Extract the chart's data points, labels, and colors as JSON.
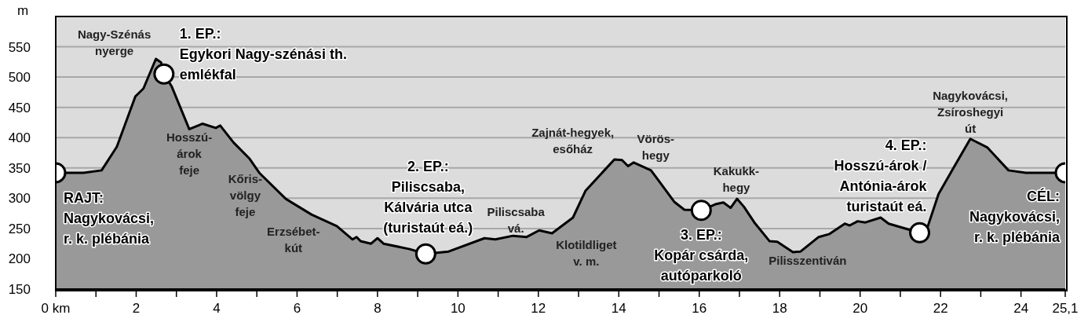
{
  "chart_data": {
    "type": "area",
    "ylabel": "m",
    "ylim": [
      150,
      600
    ],
    "yticks": [
      150,
      200,
      250,
      300,
      350,
      400,
      450,
      500,
      550
    ],
    "xlim": [
      0,
      25.1
    ],
    "xticks": [
      {
        "value": 0,
        "label": "0 km"
      },
      {
        "value": 1,
        "label": null
      },
      2,
      {
        "value": 3,
        "label": null
      },
      4,
      {
        "value": 5,
        "label": null
      },
      6,
      {
        "value": 7,
        "label": null
      },
      8,
      {
        "value": 9,
        "label": null
      },
      10,
      {
        "value": 11,
        "label": null
      },
      12,
      {
        "value": 13,
        "label": null
      },
      14,
      {
        "value": 15,
        "label": null
      },
      16,
      {
        "value": 17,
        "label": null
      },
      18,
      {
        "value": 19,
        "label": null
      },
      20,
      {
        "value": 21,
        "label": null
      },
      22,
      {
        "value": 23,
        "label": null
      },
      24,
      {
        "value": 25.1,
        "label": "25,1"
      }
    ],
    "grid": "y",
    "series": [
      {
        "color": "#999999",
        "x": [
          0,
          0.69,
          1.14,
          1.52,
          1.98,
          2.18,
          2.49,
          2.62,
          2.69,
          2.88,
          3.32,
          3.65,
          3.98,
          4.09,
          4.42,
          4.81,
          5.06,
          5.72,
          6.36,
          6.99,
          7.38,
          7.48,
          7.58,
          7.84,
          8.0,
          8.15,
          8.8,
          9.2,
          9.77,
          10.66,
          10.93,
          11.37,
          11.71,
          12.02,
          12.34,
          12.86,
          13.17,
          13.64,
          13.89,
          14.08,
          14.23,
          14.37,
          14.8,
          14.99,
          15.38,
          15.63,
          16.05,
          16.4,
          16.6,
          16.78,
          16.94,
          17.11,
          17.37,
          17.75,
          17.94,
          18.33,
          18.52,
          18.97,
          19.24,
          19.62,
          19.74,
          19.94,
          20.13,
          20.51,
          20.71,
          21.48,
          21.67,
          21.95,
          22.33,
          22.74,
          23.16,
          23.69,
          24.12,
          25.1
        ],
        "values": [
          342,
          342,
          346,
          385,
          468,
          481,
          530,
          524,
          505,
          485,
          414,
          423,
          416,
          420,
          392,
          366,
          342,
          299,
          273,
          254,
          232,
          236,
          229,
          225,
          234,
          225,
          216,
          208,
          212,
          234,
          232,
          238,
          236,
          247,
          242,
          268,
          312,
          346,
          364,
          363,
          353,
          359,
          346,
          329,
          294,
          281,
          280,
          290,
          293,
          284,
          299,
          286,
          260,
          229,
          228,
          211,
          212,
          236,
          241,
          258,
          255,
          262,
          260,
          268,
          258,
          243,
          251,
          307,
          351,
          398,
          384,
          346,
          342,
          342
        ]
      },
      {
        "type": "scatter",
        "color": "#ffffff",
        "marker": "circle",
        "x": [
          0,
          2.69,
          9.2,
          16.05,
          21.48,
          25.1
        ],
        "values": [
          342,
          505,
          208,
          280,
          243,
          342
        ]
      }
    ],
    "annotations": [
      {
        "text": "Nagy-Szénás\nnyerge",
        "x": 2.49,
        "y": 530
      },
      {
        "text": "Hosszú-\nárok\nfeje",
        "x": 3.32,
        "y": 414
      },
      {
        "text": "Kőris-\nvölgy\nfeje",
        "x": 4.81,
        "y": 366
      },
      {
        "text": "Erzsébet-\nkút",
        "x": 6.36,
        "y": 273
      },
      {
        "text": "Piliscsaba\nvá.",
        "x": 10.66,
        "y": 234
      },
      {
        "text": "Klotildliget\nv. m.",
        "x": 12.86,
        "y": 268
      },
      {
        "text": "Zajnát-hegyek,\nesőház",
        "x": 13.89,
        "y": 364
      },
      {
        "text": "Vörös-\nhegy",
        "x": 14.37,
        "y": 359
      },
      {
        "text": "Kakukk-\nhegy",
        "x": 16.94,
        "y": 299
      },
      {
        "text": "Pilisszentiván",
        "x": 18.52,
        "y": 212
      },
      {
        "text": "Nagykovácsi,\nZsíroshegyi\nút",
        "x": 22.74,
        "y": 398
      },
      {
        "text": "RAJT:\nNagykovácsi,\nr. k. plébánia",
        "x": 0,
        "y": 342
      },
      {
        "text": "1. EP.:\nEgykori Nagy-szénási th.\nemlékfal",
        "x": 2.69,
        "y": 505
      },
      {
        "text": "2. EP.:\nPiliscsaba,\nKálvária utca\n(turistaút eá.)",
        "x": 9.2,
        "y": 208
      },
      {
        "text": "3. EP.:\nKopár csárda,\nautóparkoló",
        "x": 16.05,
        "y": 280
      },
      {
        "text": "4. EP.:\nHosszú-árok /\nAntónia-árok\nturistaút eá.",
        "x": 21.48,
        "y": 243
      },
      {
        "text": "CÉL:\nNagykovácsi,\nr. k. plébánia",
        "x": 25.1,
        "y": 342
      }
    ]
  }
}
